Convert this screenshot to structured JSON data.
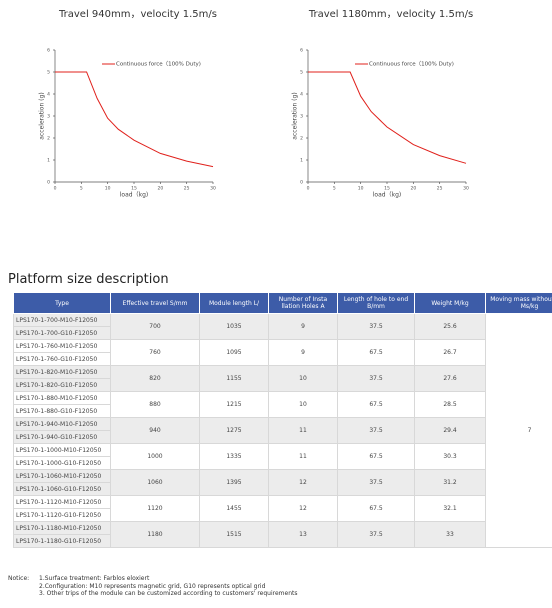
{
  "chart_data": [
    {
      "type": "line",
      "title": "Travel 940mm，velocity 1.5m/s",
      "x_label": "load（kg)",
      "y_label": "acceleration (g)",
      "x": [
        0,
        6,
        8,
        10,
        12,
        15,
        20,
        25,
        30
      ],
      "series": [
        {
          "name": "Continuous force（100% Duty)",
          "color": "#e0201b",
          "values": [
            5,
            5,
            3.8,
            2.9,
            2.4,
            1.9,
            1.3,
            0.95,
            0.7
          ]
        }
      ],
      "xlim": [
        0,
        30
      ],
      "ylim": [
        0,
        6
      ],
      "xticks": [
        0,
        5,
        10,
        15,
        20,
        25,
        30
      ],
      "yticks": [
        0,
        1,
        2,
        3,
        4,
        5,
        6
      ]
    },
    {
      "type": "line",
      "title": "Travel 1180mm，velocity 1.5m/s",
      "x_label": "load（kg)",
      "y_label": "acceleration (g)",
      "x": [
        0,
        8,
        10,
        12,
        15,
        20,
        25,
        30
      ],
      "series": [
        {
          "name": "Continuous force（100% Duty)",
          "color": "#e0201b",
          "values": [
            5,
            5,
            3.9,
            3.2,
            2.5,
            1.7,
            1.2,
            0.85
          ]
        }
      ],
      "xlim": [
        0,
        30
      ],
      "ylim": [
        0,
        6
      ],
      "xticks": [
        0,
        5,
        10,
        15,
        20,
        25,
        30
      ],
      "yticks": [
        0,
        1,
        2,
        3,
        4,
        5,
        6
      ]
    }
  ],
  "section_title": "Platform size description",
  "table": {
    "headers": [
      "Type",
      "Effective travel S/mm",
      "Module length L/",
      "Number of Insta llation Holes A",
      "Length of hole to end B/mm",
      "Weight M/kg",
      "Moving mass without load Ms/kg"
    ],
    "moving_mass": "7",
    "groups": [
      {
        "types": [
          "LPS170-1-700-M10-F12050",
          "LPS170-1-700-G10-F12050"
        ],
        "cells": [
          "700",
          "1035",
          "9",
          "37.5",
          "25.6"
        ]
      },
      {
        "types": [
          "LPS170-1-760-M10-F12050",
          "LPS170-1-760-G10-F12050"
        ],
        "cells": [
          "760",
          "1095",
          "9",
          "67.5",
          "26.7"
        ]
      },
      {
        "types": [
          "LPS170-1-820-M10-F12050",
          "LPS170-1-820-G10-F12050"
        ],
        "cells": [
          "820",
          "1155",
          "10",
          "37.5",
          "27.6"
        ]
      },
      {
        "types": [
          "LPS170-1-880-M10-F12050",
          "LPS170-1-880-G10-F12050"
        ],
        "cells": [
          "880",
          "1215",
          "10",
          "67.5",
          "28.5"
        ]
      },
      {
        "types": [
          "LPS170-1-940-M10-F12050",
          "LPS170-1-940-G10-F12050"
        ],
        "cells": [
          "940",
          "1275",
          "11",
          "37.5",
          "29.4"
        ]
      },
      {
        "types": [
          "LPS170-1-1000-M10-F12050",
          "LPS170-1-1000-G10-F12050"
        ],
        "cells": [
          "1000",
          "1335",
          "11",
          "67.5",
          "30.3"
        ]
      },
      {
        "types": [
          "LPS170-1-1060-M10-F12050",
          "LPS170-1-1060-G10-F12050"
        ],
        "cells": [
          "1060",
          "1395",
          "12",
          "37.5",
          "31.2"
        ]
      },
      {
        "types": [
          "LPS170-1-1120-M10-F12050",
          "LPS170-1-1120-G10-F12050"
        ],
        "cells": [
          "1120",
          "1455",
          "12",
          "67.5",
          "32.1"
        ]
      },
      {
        "types": [
          "LPS170-1-1180-M10-F12050",
          "LPS170-1-1180-G10-F12050"
        ],
        "cells": [
          "1180",
          "1515",
          "13",
          "37.5",
          "33"
        ]
      }
    ]
  },
  "notice": {
    "label": "Notice:",
    "lines": [
      "1.Surface treatment: Farblos eloxiert",
      "2.Configuration: M10 represents magnetic grid, G10 represents optical grid",
      "3. Other trips of the module can be customized according to customers' requirements"
    ]
  }
}
